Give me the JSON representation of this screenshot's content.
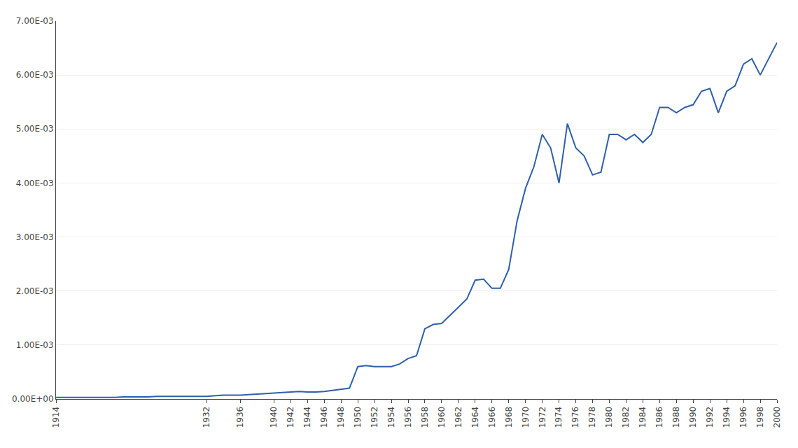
{
  "chart_data": {
    "type": "line",
    "color": "#2E5FAC",
    "grid": "y",
    "x": [
      1914,
      1915,
      1916,
      1917,
      1918,
      1919,
      1920,
      1921,
      1922,
      1923,
      1924,
      1925,
      1926,
      1927,
      1928,
      1929,
      1930,
      1931,
      1932,
      1933,
      1934,
      1935,
      1936,
      1937,
      1938,
      1939,
      1940,
      1941,
      1942,
      1943,
      1944,
      1945,
      1946,
      1947,
      1948,
      1949,
      1950,
      1951,
      1952,
      1953,
      1954,
      1955,
      1956,
      1957,
      1958,
      1959,
      1960,
      1961,
      1962,
      1963,
      1964,
      1965,
      1966,
      1967,
      1968,
      1969,
      1970,
      1971,
      1972,
      1973,
      1974,
      1975,
      1976,
      1977,
      1978,
      1979,
      1980,
      1981,
      1982,
      1983,
      1984,
      1985,
      1986,
      1987,
      1988,
      1989,
      1990,
      1991,
      1992,
      1993,
      1994,
      1995,
      1996,
      1997,
      1998,
      1999,
      2000
    ],
    "values": [
      3e-05,
      3e-05,
      3e-05,
      3e-05,
      3e-05,
      3e-05,
      3e-05,
      3e-05,
      4e-05,
      4e-05,
      4e-05,
      4e-05,
      5e-05,
      5e-05,
      5e-05,
      5e-05,
      5e-05,
      5e-05,
      5e-05,
      6e-05,
      7e-05,
      7e-05,
      7e-05,
      8e-05,
      9e-05,
      0.0001,
      0.00011,
      0.00012,
      0.00013,
      0.00014,
      0.00013,
      0.00013,
      0.00014,
      0.00016,
      0.00018,
      0.0002,
      0.0006,
      0.00062,
      0.0006,
      0.0006,
      0.0006,
      0.00065,
      0.00075,
      0.0008,
      0.0013,
      0.00138,
      0.0014,
      0.00155,
      0.0017,
      0.00185,
      0.0022,
      0.00222,
      0.00205,
      0.00205,
      0.0024,
      0.0033,
      0.0039,
      0.0043,
      0.0049,
      0.00465,
      0.004,
      0.0051,
      0.00465,
      0.0045,
      0.00415,
      0.0042,
      0.0049,
      0.0049,
      0.0048,
      0.0049,
      0.00475,
      0.0049,
      0.0054,
      0.0054,
      0.0053,
      0.0054,
      0.00545,
      0.0057,
      0.00575,
      0.0053,
      0.0057,
      0.0058,
      0.0062,
      0.0063,
      0.006,
      0.0063,
      0.0066
    ],
    "xlim": [
      1914,
      2000
    ],
    "xticks": [
      1914,
      1932,
      1936,
      1940,
      1942,
      1944,
      1946,
      1948,
      1950,
      1952,
      1954,
      1956,
      1958,
      1960,
      1962,
      1964,
      1966,
      1968,
      1970,
      1972,
      1974,
      1976,
      1978,
      1980,
      1982,
      1984,
      1986,
      1988,
      1990,
      1992,
      1994,
      1996,
      1998,
      2000
    ],
    "ylim": [
      0.0,
      0.007
    ],
    "yticks": [
      {
        "value": 0.0,
        "label": "0.00E+00"
      },
      {
        "value": 0.001,
        "label": "1.00E-03"
      },
      {
        "value": 0.002,
        "label": "2.00E-03"
      },
      {
        "value": 0.003,
        "label": "3.00E-03"
      },
      {
        "value": 0.004,
        "label": "4.00E-03"
      },
      {
        "value": 0.005,
        "label": "5.00E-03"
      },
      {
        "value": 0.006,
        "label": "6.00E-03"
      },
      {
        "value": 0.007,
        "label": "7.00E-03"
      }
    ]
  }
}
